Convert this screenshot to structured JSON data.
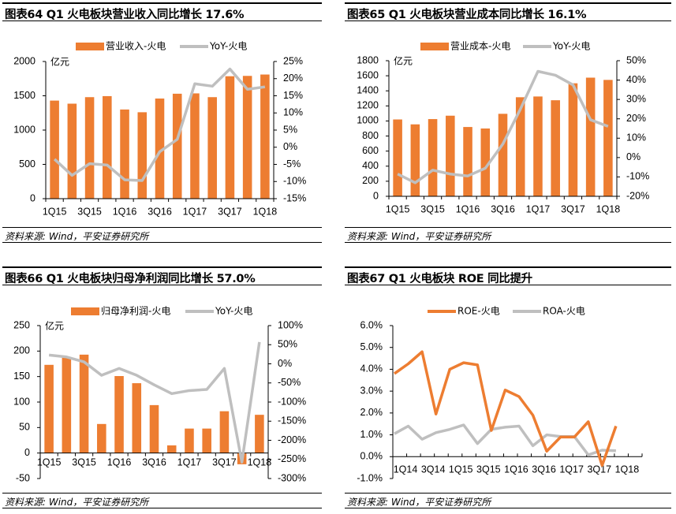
{
  "colors": {
    "bar": "#ED7D31",
    "line_gray": "#BFBFBF",
    "line_orange": "#ED7D31",
    "axis": "#000000"
  },
  "source": "资料来源: Wind，平安证券研究所",
  "chart_data": [
    {
      "id": "fig64",
      "type": "bar+line",
      "title": "图表64    Q1 火电板块营业收入同比增长 17.6%",
      "unit_label": "亿元",
      "categories": [
        "1Q15",
        "2Q15",
        "3Q15",
        "4Q15",
        "1Q16",
        "2Q16",
        "3Q16",
        "4Q16",
        "1Q17",
        "2Q17",
        "3Q17",
        "4Q17",
        "1Q18"
      ],
      "xtick_labels": [
        "1Q15",
        "3Q15",
        "1Q16",
        "3Q16",
        "1Q17",
        "3Q17",
        "1Q18"
      ],
      "series": [
        {
          "name": "营业收入-火电",
          "kind": "bar",
          "axis": "left",
          "values": [
            1430,
            1385,
            1480,
            1495,
            1300,
            1260,
            1460,
            1530,
            1535,
            1480,
            1785,
            1790,
            1810
          ]
        },
        {
          "name": "YoY-火电",
          "kind": "line",
          "axis": "right",
          "values": [
            -3.5,
            -8.2,
            -4.8,
            -5.2,
            -9.5,
            -9.7,
            -1.3,
            2.3,
            18.5,
            17.8,
            22.8,
            16.9,
            17.6
          ]
        }
      ],
      "ylim_left": [
        0,
        2000
      ],
      "yticks_left": [
        0,
        500,
        1000,
        1500,
        2000
      ],
      "ytick_labels_left": [
        "0",
        "500",
        "1000",
        "1500",
        "2000"
      ],
      "ylim_right": [
        -15,
        25
      ],
      "yticks_right": [
        -15,
        -10,
        -5,
        0,
        5,
        10,
        15,
        20,
        25
      ],
      "ytick_labels_right": [
        "-15%",
        "-10%",
        "-5%",
        "0%",
        "5%",
        "10%",
        "15%",
        "20%",
        "25%"
      ],
      "legend": "top-center"
    },
    {
      "id": "fig65",
      "type": "bar+line",
      "title": "图表65    Q1 火电板块营业成本同比增长 16.1%",
      "unit_label": "亿元",
      "categories": [
        "1Q15",
        "2Q15",
        "3Q15",
        "4Q15",
        "1Q16",
        "2Q16",
        "3Q16",
        "4Q16",
        "1Q17",
        "2Q17",
        "3Q17",
        "4Q17",
        "1Q18"
      ],
      "xtick_labels": [
        "1Q15",
        "3Q15",
        "1Q16",
        "3Q16",
        "1Q17",
        "3Q17",
        "1Q18"
      ],
      "series": [
        {
          "name": "营业成本-火电",
          "kind": "bar",
          "axis": "left",
          "values": [
            1020,
            955,
            1025,
            1070,
            920,
            900,
            1095,
            1315,
            1325,
            1275,
            1500,
            1575,
            1545
          ]
        },
        {
          "name": "YoY-火电",
          "kind": "line",
          "axis": "right",
          "values": [
            -8.5,
            -13,
            -6.5,
            -8.5,
            -9.5,
            -5.5,
            7,
            25,
            44.5,
            42.5,
            37.5,
            19.5,
            16.1
          ]
        }
      ],
      "ylim_left": [
        0,
        1800
      ],
      "yticks_left": [
        0,
        200,
        400,
        600,
        800,
        1000,
        1200,
        1400,
        1600,
        1800
      ],
      "ytick_labels_left": [
        "0",
        "200",
        "400",
        "600",
        "800",
        "1000",
        "1200",
        "1400",
        "1600",
        "1800"
      ],
      "ylim_right": [
        -20,
        50
      ],
      "yticks_right": [
        -20,
        -10,
        0,
        10,
        20,
        30,
        40,
        50
      ],
      "ytick_labels_right": [
        "-20%",
        "-10%",
        "0%",
        "10%",
        "20%",
        "30%",
        "40%",
        "50%"
      ],
      "legend": "top-center"
    },
    {
      "id": "fig66",
      "type": "bar+line",
      "title": "图表66    Q1 火电板块归母净利润同比增长 57.0%",
      "unit_label": "亿元",
      "categories": [
        "1Q15",
        "2Q15",
        "3Q15",
        "4Q15",
        "1Q16",
        "2Q16",
        "3Q16",
        "4Q16",
        "1Q17",
        "2Q17",
        "3Q17",
        "4Q17",
        "1Q18"
      ],
      "xtick_labels": [
        "1Q15",
        "3Q15",
        "1Q16",
        "3Q16",
        "1Q17",
        "3Q17",
        "1Q18"
      ],
      "series": [
        {
          "name": "归母净利润-火电",
          "kind": "bar",
          "axis": "left",
          "values": [
            173,
            187,
            193,
            57,
            151,
            137,
            94,
            15,
            48,
            48,
            82,
            -22,
            75
          ]
        },
        {
          "name": "YoY-火电",
          "kind": "line",
          "axis": "right",
          "values": [
            23,
            18,
            5,
            -30,
            -12,
            -30,
            -55,
            -78,
            -70,
            -67,
            -12,
            -257,
            57
          ]
        }
      ],
      "ylim_left": [
        -50,
        250
      ],
      "yticks_left": [
        -50,
        0,
        50,
        100,
        150,
        200,
        250
      ],
      "ytick_labels_left": [
        "-50",
        "0",
        "50",
        "100",
        "150",
        "200",
        "250"
      ],
      "ylim_right": [
        -300,
        100
      ],
      "yticks_right": [
        -300,
        -250,
        -200,
        -150,
        -100,
        -50,
        0,
        50,
        100
      ],
      "ytick_labels_right": [
        "-300%",
        "-250%",
        "-200%",
        "-150%",
        "-100%",
        "-50%",
        "0%",
        "50%",
        "100%"
      ],
      "legend": "top-center"
    },
    {
      "id": "fig67",
      "type": "line",
      "title": "图表67    Q1 火电板块 ROE 同比提升",
      "categories": [
        "1Q14",
        "2Q14",
        "3Q14",
        "4Q14",
        "1Q15",
        "2Q15",
        "3Q15",
        "4Q15",
        "1Q16",
        "2Q16",
        "3Q16",
        "4Q16",
        "1Q17",
        "2Q17",
        "3Q17",
        "4Q17",
        "1Q18",
        "2Q18"
      ],
      "xtick_labels": [
        "1Q14",
        "3Q14",
        "1Q15",
        "3Q15",
        "1Q16",
        "3Q16",
        "1Q17",
        "3Q17",
        "1Q18"
      ],
      "series": [
        {
          "name": "ROE-火电",
          "color": "#ED7D31",
          "values": [
            3.8,
            4.25,
            4.8,
            1.95,
            4.0,
            4.3,
            4.2,
            1.2,
            3.05,
            2.75,
            1.9,
            0.25,
            0.9,
            0.9,
            1.6,
            -0.4,
            1.4,
            null
          ]
        },
        {
          "name": "ROA-火电",
          "color": "#BFBFBF",
          "values": [
            1.05,
            1.4,
            0.8,
            1.1,
            1.25,
            1.45,
            0.6,
            1.25,
            1.35,
            1.4,
            0.5,
            1.0,
            0.92,
            0.92,
            0.08,
            0.3,
            0.27,
            null
          ]
        }
      ],
      "ylim": [
        -1.0,
        6.0
      ],
      "yticks": [
        -1,
        0,
        1,
        2,
        3,
        4,
        5,
        6
      ],
      "ytick_labels": [
        "-1.0%",
        "0.0%",
        "1.0%",
        "2.0%",
        "3.0%",
        "4.0%",
        "5.0%",
        "6.0%"
      ],
      "legend": "top-center"
    }
  ]
}
